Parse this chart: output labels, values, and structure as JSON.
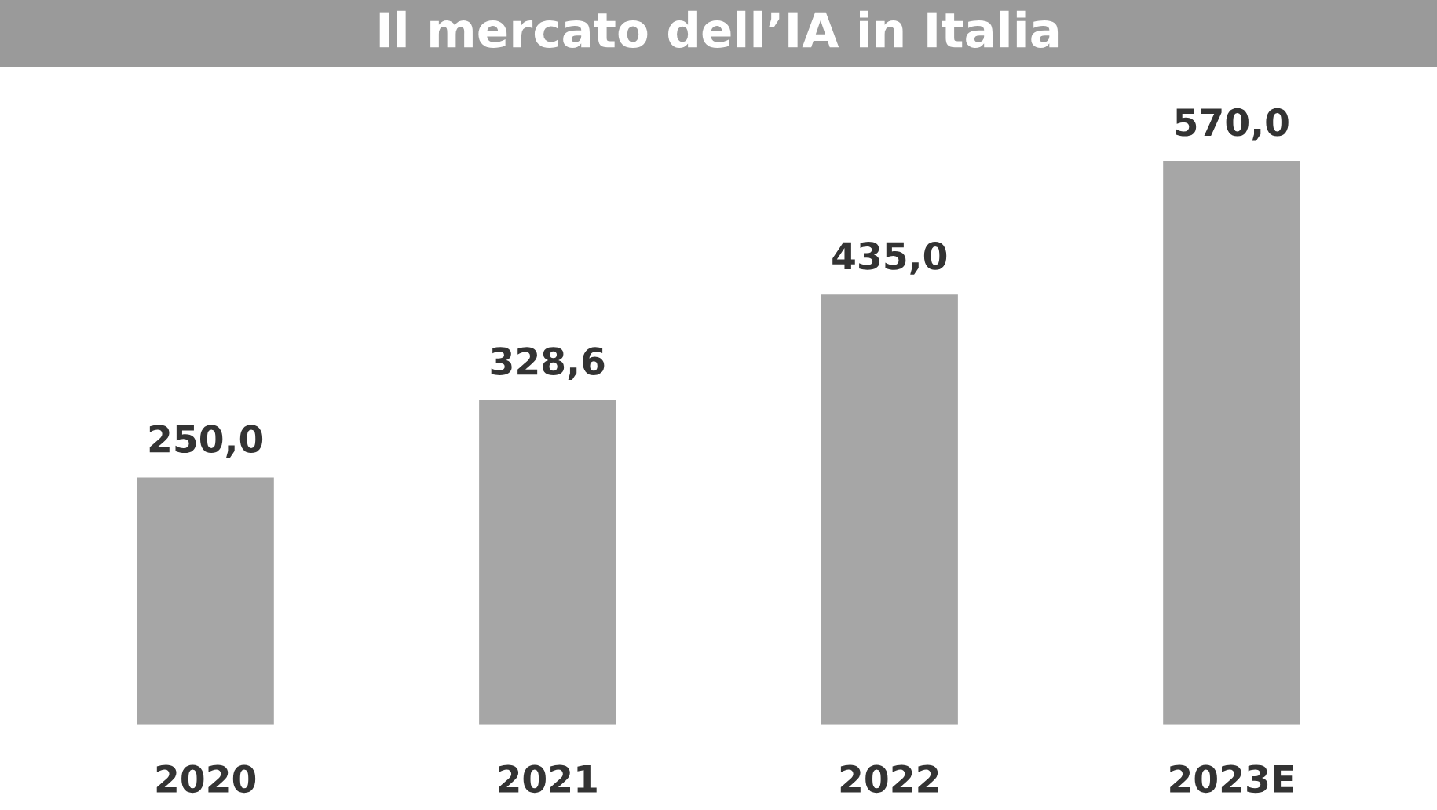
{
  "chart_data": {
    "type": "bar",
    "title": "Il mercato dell’IA in Italia",
    "categories": [
      "2020",
      "2021",
      "2022",
      "2023E"
    ],
    "values": [
      250.0,
      328.6,
      435.0,
      570.0
    ],
    "value_labels": [
      "250,0",
      "328,6",
      "435,0",
      "570,0"
    ],
    "color": "#a6a6a6",
    "grid": false,
    "legend": false
  }
}
